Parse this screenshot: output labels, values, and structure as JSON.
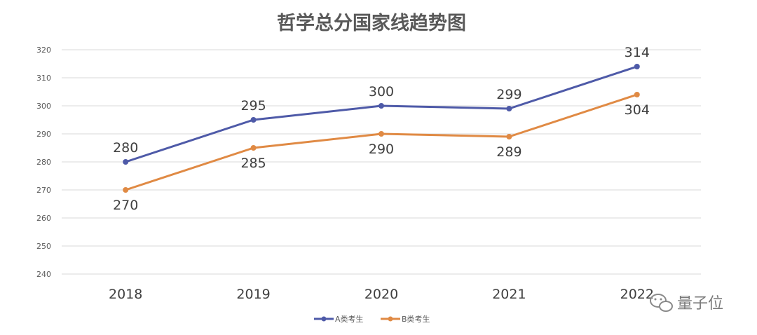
{
  "chart_data": {
    "type": "line",
    "title": "哲学总分国家线趋势图",
    "xlabel": "",
    "ylabel": "",
    "categories": [
      "2018",
      "2019",
      "2020",
      "2021",
      "2022"
    ],
    "ylim": [
      240,
      320
    ],
    "yticks": [
      240,
      250,
      260,
      270,
      280,
      290,
      300,
      310,
      320
    ],
    "grid": true,
    "legend_position": "bottom",
    "series": [
      {
        "name": "A类考生",
        "color": "#4e5aa8",
        "values": [
          280,
          295,
          300,
          299,
          314
        ]
      },
      {
        "name": "B类考生",
        "color": "#e08a44",
        "values": [
          270,
          285,
          290,
          289,
          304
        ]
      }
    ]
  },
  "watermark": {
    "text": "量子位",
    "icon": "wechat-icon"
  }
}
